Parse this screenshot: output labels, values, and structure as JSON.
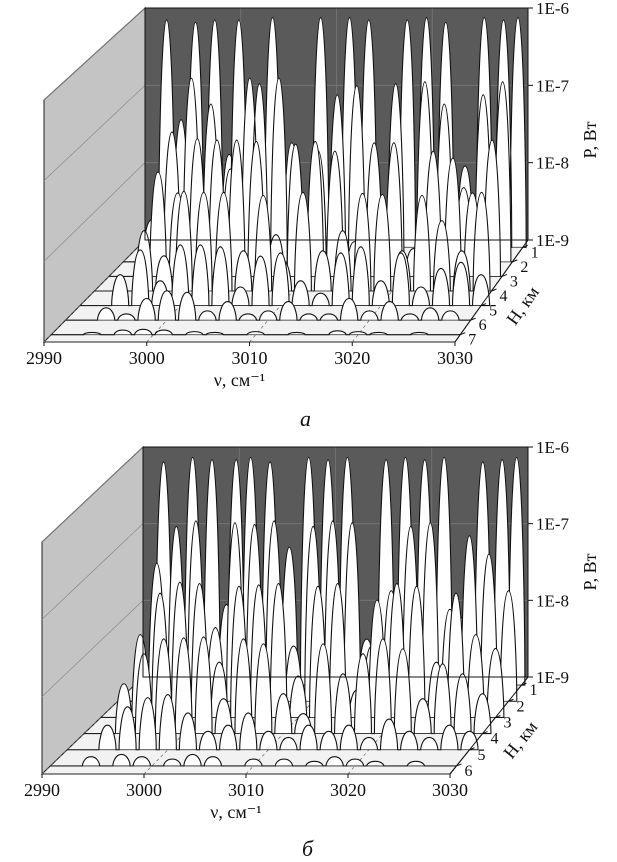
{
  "panel_labels": [
    "а",
    "б"
  ],
  "chart_data": [
    {
      "type": "area",
      "panel_label": "а",
      "xlabel": "ν, см⁻¹",
      "ylabel": "P, Вт",
      "depth_label": "H, км",
      "x_ticks": [
        "2990",
        "3000",
        "3010",
        "3020",
        "3030"
      ],
      "x_range": [
        2990,
        3030
      ],
      "y_ticks": [
        "1E-6",
        "1E-7",
        "1E-8",
        "1E-9"
      ],
      "y_range_log10": [
        -9,
        -6
      ],
      "depth_ticks": [
        "1",
        "2",
        "3",
        "4",
        "5",
        "6",
        "7"
      ],
      "series": [
        {
          "H": 1,
          "peak_log10": -6.0,
          "x": [
            2991.5,
            2993,
            2994.5,
            2996,
            2998,
            2999.5,
            3000.5,
            3004,
            3006,
            3009,
            3012,
            3014,
            3016,
            3018,
            3020,
            3022,
            3024,
            3026,
            3028,
            3029.5
          ],
          "rel": [
            0.12,
            0.98,
            0.55,
            0.97,
            0.98,
            0.4,
            0.98,
            0.99,
            0.45,
            0.99,
            0.99,
            0.98,
            0.08,
            0.98,
            0.99,
            0.97,
            0.35,
            0.99,
            0.98,
            0.99
          ]
        },
        {
          "H": 2,
          "peak_log10": -6.6,
          "x": [
            2995,
            2997,
            2999,
            3001,
            3003,
            3004,
            3006,
            3008,
            3010,
            3012,
            3014,
            3016,
            3018,
            3021,
            3023,
            3025,
            3027,
            3029
          ],
          "rel": [
            0.7,
            0.99,
            0.85,
            0.5,
            0.99,
            0.96,
            0.99,
            0.2,
            0.6,
            0.9,
            0.95,
            0.3,
            0.96,
            0.97,
            0.85,
            0.4,
            0.9,
            0.97
          ]
        },
        {
          "H": 3,
          "peak_log10": -7.2,
          "x": [
            2995,
            2997,
            2999,
            3001,
            3003,
            3005,
            3007,
            3009,
            3011,
            3013,
            3015,
            3017,
            3019,
            3021,
            3023,
            3025,
            3027,
            3029
          ],
          "rel": [
            0.75,
            0.6,
            0.99,
            0.98,
            0.98,
            0.97,
            0.3,
            0.95,
            0.97,
            0.9,
            0.25,
            0.96,
            0.96,
            0.2,
            0.9,
            0.85,
            0.6,
            0.98
          ]
        },
        {
          "H": 4,
          "peak_log10": -7.7,
          "x": [
            2995,
            2997,
            2999,
            3001,
            3003,
            3005,
            3007,
            3009,
            3011,
            3013,
            3015,
            3017,
            3019,
            3021,
            3023,
            3025,
            3027,
            3029
          ],
          "rel": [
            0.6,
            0.35,
            0.99,
            0.98,
            0.98,
            0.4,
            0.95,
            0.3,
            0.98,
            0.4,
            0.6,
            0.97,
            0.96,
            0.4,
            0.95,
            0.7,
            0.4,
            0.98
          ]
        },
        {
          "H": 5,
          "peak_log10": -8.2,
          "x": [
            2994,
            2996,
            2998,
            3000,
            3002,
            3004,
            3006,
            3008,
            3010,
            3012,
            3014,
            3016,
            3018,
            3020,
            3022,
            3024,
            3026,
            3028,
            3030
          ],
          "rel": [
            0.5,
            0.9,
            0.4,
            0.98,
            0.98,
            0.95,
            0.3,
            0.8,
            0.85,
            0.4,
            0.2,
            0.85,
            0.95,
            0.4,
            0.85,
            0.3,
            0.6,
            0.7,
            0.5
          ]
        },
        {
          "H": 6,
          "peak_log10": -8.6,
          "x": [
            2994,
            2996,
            2998,
            3000,
            3002,
            3004,
            3006,
            3008,
            3010,
            3012,
            3014,
            3016,
            3018,
            3020,
            3022,
            3024,
            3026,
            3028
          ],
          "rel": [
            0.4,
            0.2,
            0.7,
            0.95,
            0.9,
            0.3,
            0.6,
            0.2,
            0.3,
            0.6,
            0.2,
            0.2,
            0.7,
            0.3,
            0.6,
            0.2,
            0.4,
            0.3
          ]
        },
        {
          "H": 7,
          "peak_log10": -8.9,
          "x": [
            2994,
            2997,
            2999,
            3001,
            3004,
            3006,
            3010,
            3014,
            3018,
            3020,
            3022,
            3026
          ],
          "rel": [
            0.3,
            0.6,
            0.7,
            0.6,
            0.4,
            0.3,
            0.4,
            0.3,
            0.5,
            0.4,
            0.3,
            0.3
          ]
        }
      ]
    },
    {
      "type": "area",
      "panel_label": "б",
      "xlabel": "ν, см⁻¹",
      "ylabel": "P, Вт",
      "depth_label": "H, км",
      "x_ticks": [
        "2990",
        "3000",
        "3010",
        "3020",
        "3030"
      ],
      "x_range": [
        2990,
        3030
      ],
      "y_ticks": [
        "1E-6",
        "1E-7",
        "1E-8",
        "1E-9"
      ],
      "y_range_log10": [
        -9,
        -6
      ],
      "depth_ticks": [
        "1",
        "2",
        "3",
        "4",
        "5",
        "6"
      ],
      "series": [
        {
          "H": 1,
          "peak_log10": -6.0,
          "x": [
            2991.5,
            2993,
            2994.5,
            2996,
            2998,
            2999.5,
            3000.5,
            3002,
            3004,
            3006,
            3008,
            3010,
            3012,
            3014,
            3016,
            3018,
            3020,
            3022,
            3024,
            3026,
            3028,
            3029.5
          ],
          "rel": [
            0.1,
            0.97,
            0.4,
            0.99,
            0.98,
            0.35,
            0.98,
            0.99,
            0.97,
            0.6,
            0.99,
            0.98,
            0.99,
            0.2,
            0.98,
            0.99,
            0.98,
            0.99,
            0.3,
            0.97,
            0.98,
            0.99
          ]
        },
        {
          "H": 2,
          "peak_log10": -6.6,
          "x": [
            2994,
            2996,
            2998,
            3000,
            3002,
            3004,
            3006,
            3008,
            3010,
            3012,
            3014,
            3016,
            3018,
            3020,
            3022,
            3024,
            3026,
            3028,
            3030
          ],
          "rel": [
            0.75,
            0.95,
            0.98,
            0.4,
            0.97,
            0.96,
            0.98,
            0.3,
            0.95,
            0.98,
            0.97,
            0.3,
            0.6,
            0.95,
            0.97,
            0.5,
            0.9,
            0.8,
            0.6
          ]
        },
        {
          "H": 3,
          "peak_log10": -7.2,
          "x": [
            2994,
            2996,
            2998,
            3000,
            3002,
            3004,
            3006,
            3008,
            3010,
            3012,
            3014,
            3016,
            3018,
            3020,
            3022,
            3024,
            3026,
            3028,
            3030
          ],
          "rel": [
            0.6,
            0.9,
            0.98,
            0.97,
            0.4,
            0.95,
            0.96,
            0.97,
            0.3,
            0.95,
            0.97,
            0.2,
            0.85,
            0.97,
            0.95,
            0.4,
            0.9,
            0.6,
            0.5
          ]
        },
        {
          "H": 4,
          "peak_log10": -7.7,
          "x": [
            2994,
            2996,
            2998,
            3000,
            3002,
            3004,
            3006,
            3008,
            3010,
            3012,
            3014,
            3016,
            3018,
            3020,
            3022,
            3024,
            3026,
            3028,
            3030
          ],
          "rel": [
            0.5,
            0.8,
            0.95,
            0.96,
            0.97,
            0.35,
            0.95,
            0.9,
            0.4,
            0.2,
            0.9,
            0.6,
            0.8,
            0.95,
            0.85,
            0.35,
            0.7,
            0.6,
            0.4
          ]
        },
        {
          "H": 5,
          "peak_log10": -8.2,
          "x": [
            2994,
            2996,
            2998,
            3000,
            3002,
            3004,
            3006,
            3008,
            3010,
            3012,
            3014,
            3016,
            3018,
            3020,
            3022,
            3024,
            3026,
            3028,
            3030
          ],
          "rel": [
            0.4,
            0.7,
            0.85,
            0.9,
            0.6,
            0.3,
            0.4,
            0.6,
            0.3,
            0.2,
            0.4,
            0.3,
            0.4,
            0.2,
            0.5,
            0.3,
            0.2,
            0.4,
            0.3
          ]
        },
        {
          "H": 6,
          "peak_log10": -8.7,
          "x": [
            2994,
            2997,
            2999,
            3002,
            3004,
            3006,
            3010,
            3013,
            3016,
            3018,
            3020,
            3022,
            3026
          ],
          "rel": [
            0.4,
            0.5,
            0.4,
            0.3,
            0.5,
            0.4,
            0.3,
            0.3,
            0.2,
            0.4,
            0.3,
            0.2,
            0.2
          ]
        }
      ]
    }
  ]
}
